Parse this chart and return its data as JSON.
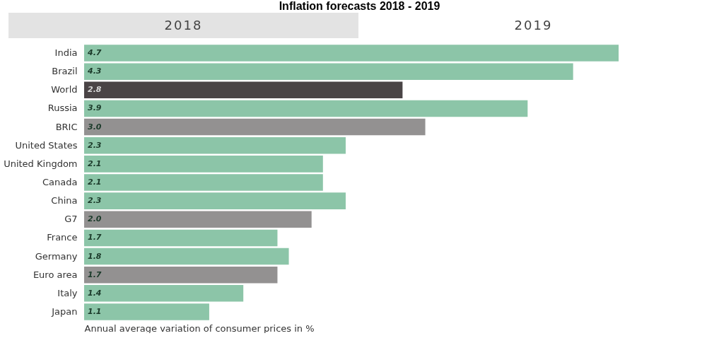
{
  "chart_data": {
    "type": "bar",
    "orientation": "horizontal",
    "title": "Inflation forecasts 2018 - 2019",
    "xlabel": "Annual average variation of consumer prices in %",
    "annotations": [
      "2018",
      "2019"
    ],
    "categories": [
      "India",
      "Brazil",
      "World",
      "Russia",
      "BRIC",
      "United States",
      "United Kingdom",
      "Canada",
      "China",
      "G7",
      "France",
      "Germany",
      "Euro area",
      "Italy",
      "Japan"
    ],
    "values": [
      4.7,
      4.3,
      2.8,
      3.9,
      3.0,
      2.3,
      2.1,
      2.1,
      2.3,
      2.0,
      1.7,
      1.8,
      1.7,
      1.4,
      1.1
    ],
    "colors": [
      "#8cc5a8",
      "#8cc5a8",
      "#4a4446",
      "#8cc5a8",
      "#939191",
      "#8cc5a8",
      "#8cc5a8",
      "#8cc5a8",
      "#8cc5a8",
      "#939191",
      "#8cc5a8",
      "#8cc5a8",
      "#939191",
      "#8cc5a8",
      "#8cc5a8"
    ],
    "value_labels": [
      "4.7",
      "4.3",
      "2.8",
      "3.9",
      "3.0",
      "2.3",
      "2.1",
      "2.1",
      "2.3",
      "2.0",
      "1.7",
      "1.8",
      "1.7",
      "1.4",
      "1.1"
    ],
    "xlim": [
      0,
      4.7
    ]
  }
}
